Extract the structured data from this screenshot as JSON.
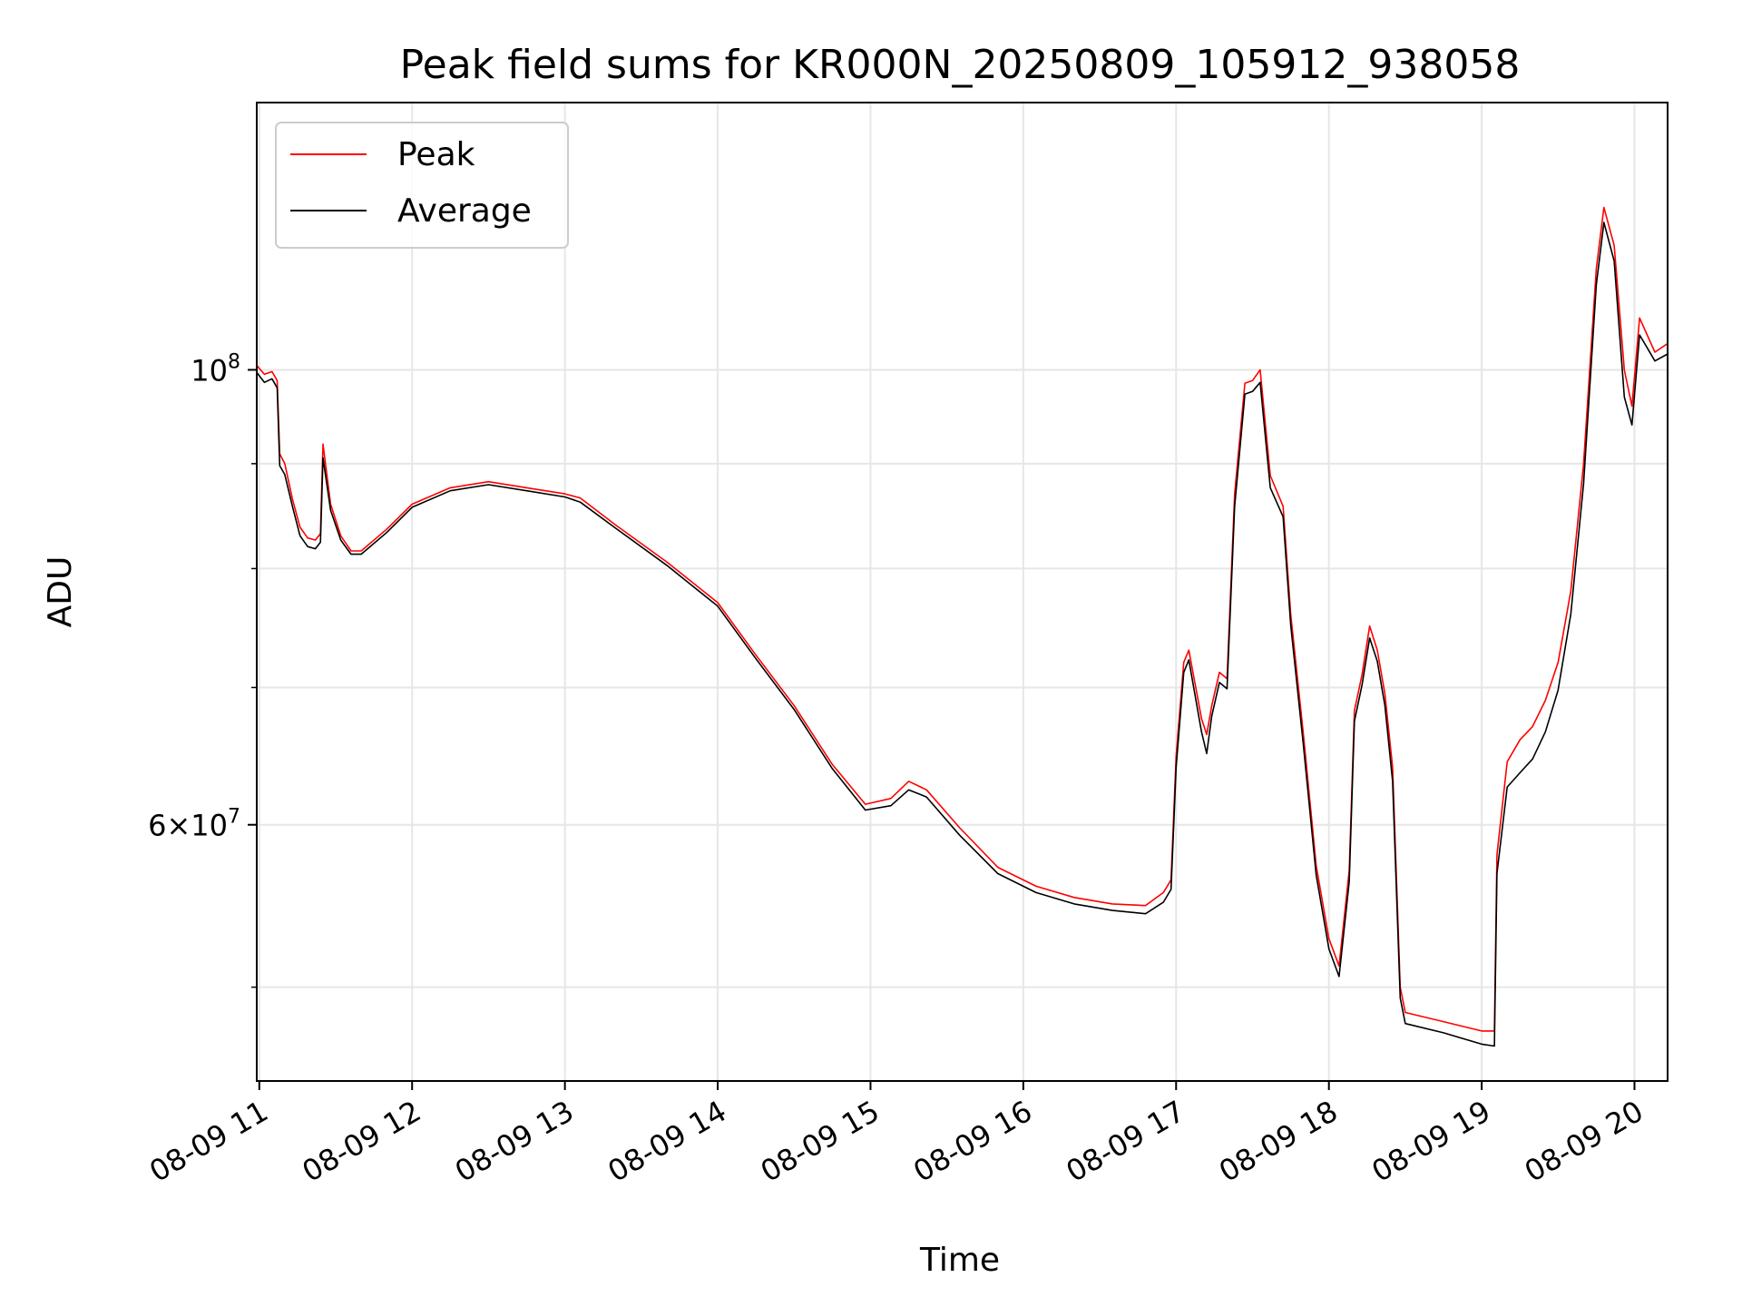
{
  "chart_data": {
    "type": "line",
    "title": "Peak field sums for KR000N_20250809_105912_938058",
    "xlabel": "Time",
    "ylabel": "ADU",
    "y_scale": "log",
    "ylim": [
      45000000,
      135000000
    ],
    "xlim": [
      "2025-08-09 10:59",
      "2025-08-09 20:13"
    ],
    "x_ticks": [
      {
        "t": "2025-08-09 11:00",
        "label": "08-09 11"
      },
      {
        "t": "2025-08-09 12:00",
        "label": "08-09 12"
      },
      {
        "t": "2025-08-09 13:00",
        "label": "08-09 13"
      },
      {
        "t": "2025-08-09 14:00",
        "label": "08-09 14"
      },
      {
        "t": "2025-08-09 15:00",
        "label": "08-09 15"
      },
      {
        "t": "2025-08-09 16:00",
        "label": "08-09 16"
      },
      {
        "t": "2025-08-09 17:00",
        "label": "08-09 17"
      },
      {
        "t": "2025-08-09 18:00",
        "label": "08-09 18"
      },
      {
        "t": "2025-08-09 19:00",
        "label": "08-09 19"
      },
      {
        "t": "2025-08-09 20:00",
        "label": "08-09 20"
      }
    ],
    "y_major_ticks": [
      {
        "value": 100000000,
        "base": "10",
        "exp": "8"
      },
      {
        "value": 60000000,
        "base": "6×10",
        "exp": "7"
      }
    ],
    "y_minor_gridlines": [
      50000000,
      70000000,
      80000000,
      90000000
    ],
    "grid": true,
    "legend_position": "top-left",
    "series": [
      {
        "name": "Peak",
        "color": "#ff0000",
        "points": [
          [
            "2025-08-09 10:59",
            100500000
          ],
          [
            "2025-08-09 11:02",
            99500000
          ],
          [
            "2025-08-09 11:05",
            99800000
          ],
          [
            "2025-08-09 11:07",
            98800000
          ],
          [
            "2025-08-09 11:08",
            91000000
          ],
          [
            "2025-08-09 11:10",
            90000000
          ],
          [
            "2025-08-09 11:13",
            86500000
          ],
          [
            "2025-08-09 11:16",
            83800000
          ],
          [
            "2025-08-09 11:19",
            82800000
          ],
          [
            "2025-08-09 11:22",
            82600000
          ],
          [
            "2025-08-09 11:24",
            83200000
          ],
          [
            "2025-08-09 11:25",
            92000000
          ],
          [
            "2025-08-09 11:28",
            86000000
          ],
          [
            "2025-08-09 11:32",
            83000000
          ],
          [
            "2025-08-09 11:36",
            81600000
          ],
          [
            "2025-08-09 11:40",
            81600000
          ],
          [
            "2025-08-09 11:50",
            83600000
          ],
          [
            "2025-08-09 12:00",
            86000000
          ],
          [
            "2025-08-09 12:15",
            87600000
          ],
          [
            "2025-08-09 12:30",
            88200000
          ],
          [
            "2025-08-09 12:45",
            87600000
          ],
          [
            "2025-08-09 13:00",
            87000000
          ],
          [
            "2025-08-09 13:06",
            86600000
          ],
          [
            "2025-08-09 13:20",
            84000000
          ],
          [
            "2025-08-09 13:40",
            80600000
          ],
          [
            "2025-08-09 14:00",
            77000000
          ],
          [
            "2025-08-09 14:15",
            72600000
          ],
          [
            "2025-08-09 14:30",
            68600000
          ],
          [
            "2025-08-09 14:45",
            64200000
          ],
          [
            "2025-08-09 14:58",
            61400000
          ],
          [
            "2025-08-09 15:08",
            61800000
          ],
          [
            "2025-08-09 15:15",
            63000000
          ],
          [
            "2025-08-09 15:22",
            62400000
          ],
          [
            "2025-08-09 15:35",
            59800000
          ],
          [
            "2025-08-09 15:50",
            57200000
          ],
          [
            "2025-08-09 16:05",
            56000000
          ],
          [
            "2025-08-09 16:20",
            55300000
          ],
          [
            "2025-08-09 16:35",
            54900000
          ],
          [
            "2025-08-09 16:48",
            54800000
          ],
          [
            "2025-08-09 16:55",
            55600000
          ],
          [
            "2025-08-09 16:58",
            56400000
          ],
          [
            "2025-08-09 17:00",
            64800000
          ],
          [
            "2025-08-09 17:03",
            72000000
          ],
          [
            "2025-08-09 17:05",
            73000000
          ],
          [
            "2025-08-09 17:10",
            67600000
          ],
          [
            "2025-08-09 17:12",
            66400000
          ],
          [
            "2025-08-09 17:14",
            68600000
          ],
          [
            "2025-08-09 17:17",
            71200000
          ],
          [
            "2025-08-09 17:20",
            70700000
          ],
          [
            "2025-08-09 17:23",
            87000000
          ],
          [
            "2025-08-09 17:27",
            98500000
          ],
          [
            "2025-08-09 17:30",
            98800000
          ],
          [
            "2025-08-09 17:33",
            100000000
          ],
          [
            "2025-08-09 17:37",
            88800000
          ],
          [
            "2025-08-09 17:42",
            85800000
          ],
          [
            "2025-08-09 17:45",
            76000000
          ],
          [
            "2025-08-09 17:50",
            66400000
          ],
          [
            "2025-08-09 17:55",
            57300000
          ],
          [
            "2025-08-09 18:00",
            52800000
          ],
          [
            "2025-08-09 18:04",
            51200000
          ],
          [
            "2025-08-09 18:08",
            57000000
          ],
          [
            "2025-08-09 18:10",
            68200000
          ],
          [
            "2025-08-09 18:13",
            71000000
          ],
          [
            "2025-08-09 18:16",
            75000000
          ],
          [
            "2025-08-09 18:19",
            73000000
          ],
          [
            "2025-08-09 18:22",
            69500000
          ],
          [
            "2025-08-09 18:25",
            64000000
          ],
          [
            "2025-08-09 18:28",
            50000000
          ],
          [
            "2025-08-09 18:30",
            48600000
          ],
          [
            "2025-08-09 18:45",
            48100000
          ],
          [
            "2025-08-09 19:00",
            47600000
          ],
          [
            "2025-08-09 19:05",
            47600000
          ],
          [
            "2025-08-09 19:06",
            58000000
          ],
          [
            "2025-08-09 19:10",
            64400000
          ],
          [
            "2025-08-09 19:15",
            66000000
          ],
          [
            "2025-08-09 19:20",
            67000000
          ],
          [
            "2025-08-09 19:25",
            69000000
          ],
          [
            "2025-08-09 19:30",
            72000000
          ],
          [
            "2025-08-09 19:35",
            78000000
          ],
          [
            "2025-08-09 19:40",
            90000000
          ],
          [
            "2025-08-09 19:45",
            112000000
          ],
          [
            "2025-08-09 19:48",
            120000000
          ],
          [
            "2025-08-09 19:52",
            115000000
          ],
          [
            "2025-08-09 19:56",
            100000000
          ],
          [
            "2025-08-09 19:59",
            96000000
          ],
          [
            "2025-08-09 20:02",
            106000000
          ],
          [
            "2025-08-09 20:05",
            104000000
          ],
          [
            "2025-08-09 20:08",
            102000000
          ],
          [
            "2025-08-09 20:13",
            103000000
          ]
        ]
      },
      {
        "name": "Average",
        "color": "#000000",
        "points": [
          [
            "2025-08-09 10:59",
            99700000
          ],
          [
            "2025-08-09 11:02",
            98600000
          ],
          [
            "2025-08-09 11:05",
            99000000
          ],
          [
            "2025-08-09 11:07",
            98000000
          ],
          [
            "2025-08-09 11:08",
            89800000
          ],
          [
            "2025-08-09 11:10",
            88900000
          ],
          [
            "2025-08-09 11:13",
            85800000
          ],
          [
            "2025-08-09 11:16",
            83000000
          ],
          [
            "2025-08-09 11:19",
            82000000
          ],
          [
            "2025-08-09 11:22",
            81800000
          ],
          [
            "2025-08-09 11:24",
            82400000
          ],
          [
            "2025-08-09 11:25",
            90600000
          ],
          [
            "2025-08-09 11:28",
            85400000
          ],
          [
            "2025-08-09 11:32",
            82600000
          ],
          [
            "2025-08-09 11:36",
            81300000
          ],
          [
            "2025-08-09 11:40",
            81300000
          ],
          [
            "2025-08-09 11:50",
            83300000
          ],
          [
            "2025-08-09 12:00",
            85700000
          ],
          [
            "2025-08-09 12:15",
            87300000
          ],
          [
            "2025-08-09 12:30",
            87900000
          ],
          [
            "2025-08-09 12:45",
            87300000
          ],
          [
            "2025-08-09 13:00",
            86700000
          ],
          [
            "2025-08-09 13:06",
            86200000
          ],
          [
            "2025-08-09 13:20",
            83700000
          ],
          [
            "2025-08-09 13:40",
            80300000
          ],
          [
            "2025-08-09 14:00",
            76700000
          ],
          [
            "2025-08-09 14:15",
            72300000
          ],
          [
            "2025-08-09 14:30",
            68300000
          ],
          [
            "2025-08-09 14:45",
            63900000
          ],
          [
            "2025-08-09 14:58",
            61000000
          ],
          [
            "2025-08-09 15:08",
            61300000
          ],
          [
            "2025-08-09 15:15",
            62400000
          ],
          [
            "2025-08-09 15:22",
            61900000
          ],
          [
            "2025-08-09 15:35",
            59300000
          ],
          [
            "2025-08-09 15:50",
            56800000
          ],
          [
            "2025-08-09 16:05",
            55600000
          ],
          [
            "2025-08-09 16:20",
            54900000
          ],
          [
            "2025-08-09 16:35",
            54500000
          ],
          [
            "2025-08-09 16:48",
            54300000
          ],
          [
            "2025-08-09 16:55",
            55000000
          ],
          [
            "2025-08-09 16:58",
            55800000
          ],
          [
            "2025-08-09 17:00",
            64000000
          ],
          [
            "2025-08-09 17:03",
            71200000
          ],
          [
            "2025-08-09 17:05",
            72200000
          ],
          [
            "2025-08-09 17:10",
            66600000
          ],
          [
            "2025-08-09 17:12",
            65000000
          ],
          [
            "2025-08-09 17:14",
            67800000
          ],
          [
            "2025-08-09 17:17",
            70400000
          ],
          [
            "2025-08-09 17:20",
            69900000
          ],
          [
            "2025-08-09 17:23",
            85800000
          ],
          [
            "2025-08-09 17:27",
            97300000
          ],
          [
            "2025-08-09 17:30",
            97600000
          ],
          [
            "2025-08-09 17:33",
            98600000
          ],
          [
            "2025-08-09 17:37",
            87600000
          ],
          [
            "2025-08-09 17:42",
            84800000
          ],
          [
            "2025-08-09 17:45",
            75100000
          ],
          [
            "2025-08-09 17:50",
            65600000
          ],
          [
            "2025-08-09 17:55",
            56700000
          ],
          [
            "2025-08-09 18:00",
            52200000
          ],
          [
            "2025-08-09 18:04",
            50600000
          ],
          [
            "2025-08-09 18:08",
            56300000
          ],
          [
            "2025-08-09 18:10",
            67400000
          ],
          [
            "2025-08-09 18:13",
            70200000
          ],
          [
            "2025-08-09 18:16",
            74000000
          ],
          [
            "2025-08-09 18:19",
            72100000
          ],
          [
            "2025-08-09 18:22",
            68600000
          ],
          [
            "2025-08-09 18:25",
            63000000
          ],
          [
            "2025-08-09 18:28",
            49400000
          ],
          [
            "2025-08-09 18:30",
            48000000
          ],
          [
            "2025-08-09 18:45",
            47500000
          ],
          [
            "2025-08-09 19:00",
            46900000
          ],
          [
            "2025-08-09 19:05",
            46800000
          ],
          [
            "2025-08-09 19:06",
            56800000
          ],
          [
            "2025-08-09 19:10",
            62600000
          ],
          [
            "2025-08-09 19:15",
            63600000
          ],
          [
            "2025-08-09 19:20",
            64600000
          ],
          [
            "2025-08-09 19:25",
            66600000
          ],
          [
            "2025-08-09 19:30",
            69800000
          ],
          [
            "2025-08-09 19:35",
            76000000
          ],
          [
            "2025-08-09 19:40",
            88000000
          ],
          [
            "2025-08-09 19:45",
            110000000
          ],
          [
            "2025-08-09 19:48",
            118000000
          ],
          [
            "2025-08-09 19:52",
            113000000
          ],
          [
            "2025-08-09 19:56",
            97000000
          ],
          [
            "2025-08-09 19:59",
            94000000
          ],
          [
            "2025-08-09 20:02",
            104000000
          ],
          [
            "2025-08-09 20:05",
            102500000
          ],
          [
            "2025-08-09 20:08",
            101000000
          ],
          [
            "2025-08-09 20:13",
            101800000
          ]
        ]
      }
    ]
  }
}
